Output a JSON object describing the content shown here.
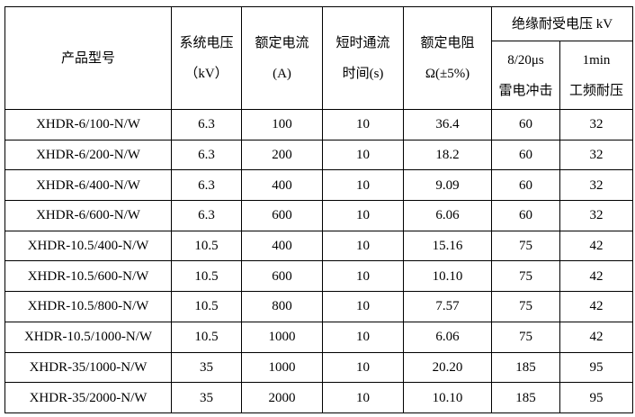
{
  "table": {
    "headers": {
      "model": "产品型号",
      "voltage": [
        "系统电压",
        "（kV）"
      ],
      "current": [
        "额定电流",
        "(A)"
      ],
      "time": [
        "短时通流",
        "时间(s)"
      ],
      "resistance": [
        "额定电阻",
        "Ω(±5%)"
      ],
      "insulation": "绝缘耐受电压 kV",
      "lightning": [
        "8/20μs",
        "雷电冲击"
      ],
      "power_freq": [
        "1min",
        "工频耐压"
      ]
    },
    "rows": [
      [
        "XHDR-6/100-N/W",
        "6.3",
        "100",
        "10",
        "36.4",
        "60",
        "32"
      ],
      [
        "XHDR-6/200-N/W",
        "6.3",
        "200",
        "10",
        "18.2",
        "60",
        "32"
      ],
      [
        "XHDR-6/400-N/W",
        "6.3",
        "400",
        "10",
        "9.09",
        "60",
        "32"
      ],
      [
        "XHDR-6/600-N/W",
        "6.3",
        "600",
        "10",
        "6.06",
        "60",
        "32"
      ],
      [
        "XHDR-10.5/400-N/W",
        "10.5",
        "400",
        "10",
        "15.16",
        "75",
        "42"
      ],
      [
        "XHDR-10.5/600-N/W",
        "10.5",
        "600",
        "10",
        "10.10",
        "75",
        "42"
      ],
      [
        "XHDR-10.5/800-N/W",
        "10.5",
        "800",
        "10",
        "7.57",
        "75",
        "42"
      ],
      [
        "XHDR-10.5/1000-N/W",
        "10.5",
        "1000",
        "10",
        "6.06",
        "75",
        "42"
      ],
      [
        "XHDR-35/1000-N/W",
        "35",
        "1000",
        "10",
        "20.20",
        "185",
        "95"
      ],
      [
        "XHDR-35/2000-N/W",
        "35",
        "2000",
        "10",
        "10.10",
        "185",
        "95"
      ]
    ]
  }
}
